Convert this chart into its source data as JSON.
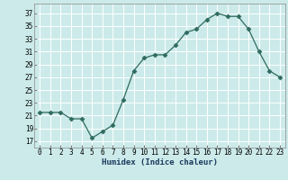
{
  "x": [
    0,
    1,
    2,
    3,
    4,
    5,
    6,
    7,
    8,
    9,
    10,
    11,
    12,
    13,
    14,
    15,
    16,
    17,
    18,
    19,
    20,
    21,
    22,
    23
  ],
  "y": [
    21.5,
    21.5,
    21.5,
    20.5,
    20.5,
    17.5,
    18.5,
    19.5,
    23.5,
    28.0,
    30.0,
    30.5,
    30.5,
    32.0,
    34.0,
    34.5,
    36.0,
    37.0,
    36.5,
    36.5,
    34.5,
    31.0,
    28.0,
    27.0
  ],
  "xlabel": "Humidex (Indice chaleur)",
  "yticks": [
    17,
    19,
    21,
    23,
    25,
    27,
    29,
    31,
    33,
    35,
    37
  ],
  "xticks": [
    0,
    1,
    2,
    3,
    4,
    5,
    6,
    7,
    8,
    9,
    10,
    11,
    12,
    13,
    14,
    15,
    16,
    17,
    18,
    19,
    20,
    21,
    22,
    23
  ],
  "xlim": [
    -0.5,
    23.5
  ],
  "ylim": [
    16.0,
    38.5
  ],
  "line_color": "#2e6b5e",
  "marker": "D",
  "marker_size": 2.5,
  "bg_color": "#cceaea",
  "grid_color": "#ffffff",
  "label_fontsize": 6.5,
  "tick_fontsize": 5.5
}
